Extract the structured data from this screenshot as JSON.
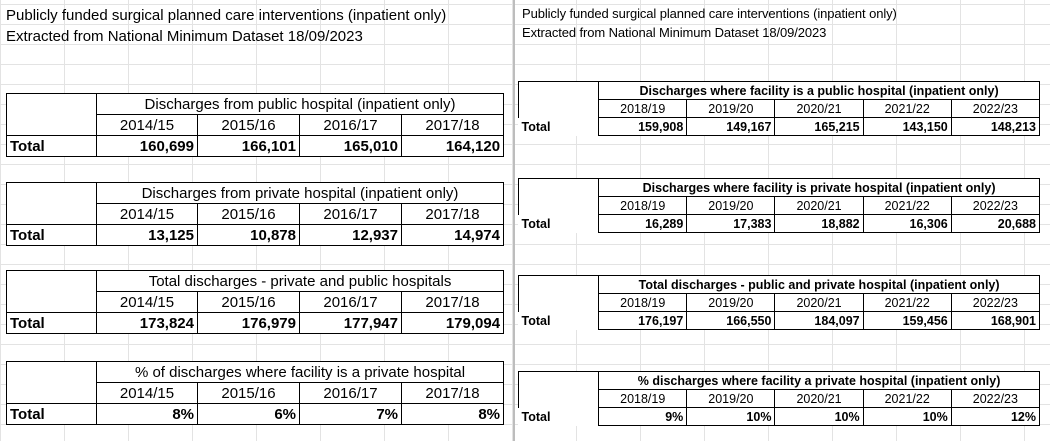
{
  "left": {
    "header_line1": "Publicly funded surgical planned care interventions (inpatient only)",
    "header_line2": "Extracted from National Minimum Dataset 18/09/2023",
    "tables": [
      {
        "title": "Discharges from public hospital (inpatient only)",
        "years": [
          "2014/15",
          "2015/16",
          "2016/17",
          "2017/18"
        ],
        "label": "Total",
        "values": [
          "160,699",
          "166,101",
          "165,010",
          "164,120"
        ]
      },
      {
        "title": "Discharges from private hospital (inpatient only)",
        "years": [
          "2014/15",
          "2015/16",
          "2016/17",
          "2017/18"
        ],
        "label": "Total",
        "values": [
          "13,125",
          "10,878",
          "12,937",
          "14,974"
        ]
      },
      {
        "title": "Total discharges - private and public hospitals",
        "years": [
          "2014/15",
          "2015/16",
          "2016/17",
          "2017/18"
        ],
        "label": "Total",
        "values": [
          "173,824",
          "176,979",
          "177,947",
          "179,094"
        ]
      },
      {
        "title": "% of discharges where facility is a private hospital",
        "years": [
          "2014/15",
          "2015/16",
          "2016/17",
          "2017/18"
        ],
        "label": "Total",
        "values": [
          "8%",
          "6%",
          "7%",
          "8%"
        ]
      }
    ]
  },
  "right": {
    "header_line1": "Publicly funded surgical planned care interventions (inpatient only)",
    "header_line2": "Extracted from National Minimum Dataset 18/09/2023",
    "tables": [
      {
        "title": "Discharges where facility is a public hospital (inpatient only)",
        "years": [
          "2018/19",
          "2019/20",
          "2020/21",
          "2021/22",
          "2022/23"
        ],
        "label": "Total",
        "values": [
          "159,908",
          "149,167",
          "165,215",
          "143,150",
          "148,213"
        ]
      },
      {
        "title": "Discharges where facility is private hospital (inpatient only)",
        "years": [
          "2018/19",
          "2019/20",
          "2020/21",
          "2021/22",
          "2022/23"
        ],
        "label": "Total",
        "values": [
          "16,289",
          "17,383",
          "18,882",
          "16,306",
          "20,688"
        ]
      },
      {
        "title": "Total discharges - public and private hospital (inpatient only)",
        "years": [
          "2018/19",
          "2019/20",
          "2020/21",
          "2021/22",
          "2022/23"
        ],
        "label": "Total",
        "values": [
          "176,197",
          "166,550",
          "184,097",
          "159,456",
          "168,901"
        ]
      },
      {
        "title": "% discharges where facility a private hospital (inpatient only)",
        "years": [
          "2018/19",
          "2019/20",
          "2020/21",
          "2021/22",
          "2022/23"
        ],
        "label": "Total",
        "values": [
          "9%",
          "10%",
          "10%",
          "10%",
          "12%"
        ]
      }
    ]
  }
}
